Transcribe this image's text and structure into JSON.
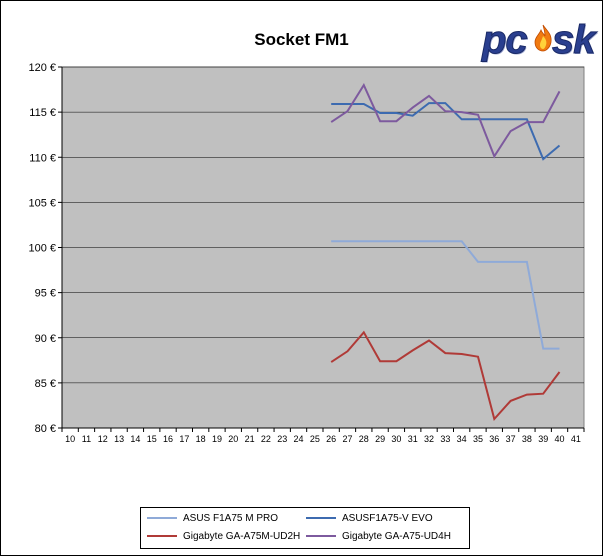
{
  "chart_data": {
    "type": "line",
    "title": "Socket FM1",
    "x": [
      10,
      11,
      12,
      13,
      14,
      15,
      16,
      17,
      18,
      19,
      20,
      21,
      22,
      23,
      24,
      25,
      26,
      27,
      28,
      29,
      30,
      31,
      32,
      33,
      34,
      35,
      36,
      37,
      38,
      39,
      40,
      41
    ],
    "ylim": [
      80,
      120
    ],
    "yticks": [
      "80 €",
      "85 €",
      "90 €",
      "95 €",
      "100 €",
      "105 €",
      "110 €",
      "115 €",
      "120 €"
    ],
    "ytick_values": [
      80,
      85,
      90,
      95,
      100,
      105,
      110,
      115,
      120
    ],
    "grid": true,
    "legend_position": "bottom",
    "series": [
      {
        "name": "ASUS F1A75 M PRO",
        "color": "#8faad8",
        "x": [
          26,
          27,
          28,
          29,
          30,
          31,
          32,
          33,
          34,
          35,
          36,
          37,
          38,
          39,
          40
        ],
        "y": [
          100.7,
          100.7,
          100.7,
          100.7,
          100.7,
          100.7,
          100.7,
          100.7,
          100.7,
          98.4,
          98.4,
          98.4,
          98.4,
          88.8,
          88.8
        ]
      },
      {
        "name": "ASUSF1A75-V EVO",
        "color": "#3d6bb0",
        "x": [
          26,
          27,
          28,
          29,
          30,
          31,
          32,
          33,
          34,
          35,
          36,
          37,
          38,
          39,
          40
        ],
        "y": [
          115.9,
          115.9,
          115.9,
          114.9,
          114.9,
          114.6,
          116.0,
          116.0,
          114.2,
          114.2,
          114.2,
          114.2,
          114.2,
          109.8,
          111.3
        ]
      },
      {
        "name": "Gigabyte GA-A75M-UD2H",
        "color": "#b03a37",
        "x": [
          26,
          27,
          28,
          29,
          30,
          31,
          32,
          33,
          34,
          35,
          36,
          37,
          38,
          39,
          40
        ],
        "y": [
          87.3,
          88.5,
          90.6,
          87.4,
          87.4,
          88.6,
          89.7,
          88.3,
          88.2,
          87.9,
          81.0,
          83.0,
          83.7,
          83.8,
          86.2
        ]
      },
      {
        "name": "Gigabyte GA-A75-UD4H",
        "color": "#7d5a9e",
        "x": [
          26,
          27,
          28,
          29,
          30,
          31,
          32,
          33,
          34,
          35,
          36,
          37,
          38,
          39,
          40
        ],
        "y": [
          113.9,
          115.1,
          118.0,
          114.0,
          114.0,
          115.5,
          116.8,
          115.1,
          115.0,
          114.7,
          110.1,
          112.9,
          113.9,
          113.9,
          117.3
        ]
      }
    ]
  },
  "logo": {
    "text": "pc sk"
  }
}
